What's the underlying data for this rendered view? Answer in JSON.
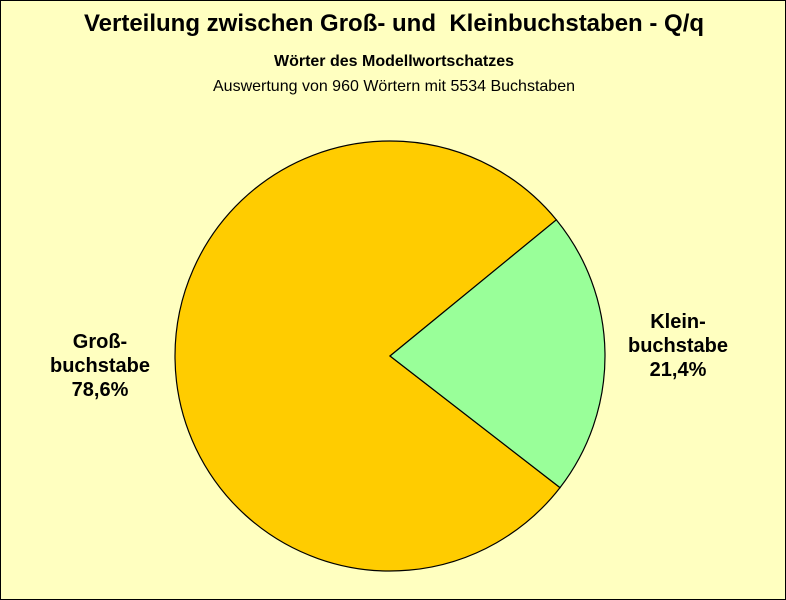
{
  "header": {
    "title": "Verteilung zwischen Groß- und  Kleinbuchstaben - Q/q",
    "subtitle": "Wörter des Modellwortschatzes",
    "subtitle2": "Auswertung von 960 Wörtern mit 5534 Buchstaben"
  },
  "colors": {
    "background": "#ffffc0",
    "gross": "#ffcc00",
    "klein": "#99ff99"
  },
  "chart_data": {
    "type": "pie",
    "title": "Verteilung zwischen Groß- und  Kleinbuchstaben - Q/q",
    "subtitle": "Wörter des Modellwortschatzes",
    "slices": [
      {
        "label_lines": [
          "Groß-",
          "buchstabe",
          "78,6%"
        ],
        "value": 78.6,
        "color": "#ffcc00"
      },
      {
        "label_lines": [
          "Klein-",
          "buchstabe",
          "21,4%"
        ],
        "value": 21.4,
        "color": "#99ff99"
      }
    ]
  }
}
